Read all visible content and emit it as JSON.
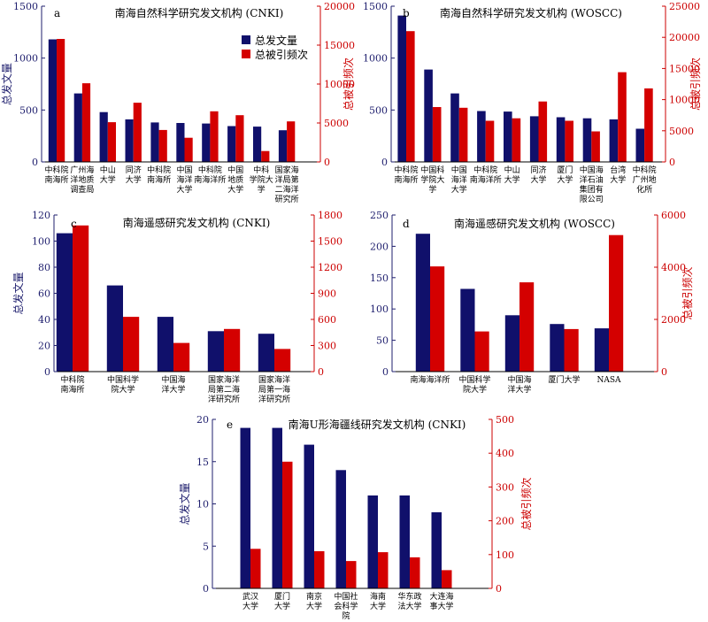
{
  "colors": {
    "pubs": "#10106b",
    "cites": "#d40000",
    "axis_left": "#1f1f6e",
    "axis_right": "#cc0000"
  },
  "legend": {
    "pubs": "总发文量",
    "cites": "总被引频次"
  },
  "chart_data": [
    {
      "type": "bar",
      "panel": "a",
      "title": "南海自然科学研究发文机构 (CNKI)",
      "ylabel": "总发文量",
      "ylabel_right": "总被引频次",
      "ylim": [
        0,
        1500
      ],
      "ylim_right": [
        0,
        20000
      ],
      "yticks": [
        0,
        500,
        1000,
        1500
      ],
      "yticks_right": [
        0,
        5000,
        10000,
        15000,
        20000
      ],
      "categories": [
        [
          "中科院",
          "南海所"
        ],
        [
          "广州海",
          "洋地质",
          "调查局"
        ],
        [
          "中山",
          "大学"
        ],
        [
          "同济",
          "大学"
        ],
        [
          "中科院",
          "南海所"
        ],
        [
          "中国",
          "海洋",
          "大学"
        ],
        [
          "中科院",
          "南海洋所"
        ],
        [
          "中国",
          "地质",
          "大学"
        ],
        [
          "中科",
          "学院大",
          "学"
        ],
        [
          "国家海",
          "洋局第",
          "二海洋",
          "研究所"
        ]
      ],
      "series": [
        {
          "name": "总发文量",
          "axis": "left",
          "values": [
            1180,
            660,
            480,
            410,
            380,
            375,
            370,
            345,
            340,
            305
          ]
        },
        {
          "name": "总被引频次",
          "axis": "right",
          "values": [
            15800,
            10100,
            5100,
            7600,
            4100,
            3100,
            6500,
            6000,
            1400,
            5200
          ]
        }
      ],
      "legend_position": "top-right"
    },
    {
      "type": "bar",
      "panel": "b",
      "title": "南海自然科学研究发文机构 (WOSCC)",
      "ylabel": "",
      "ylabel_right": "总被引频次",
      "ylim": [
        0,
        1500
      ],
      "ylim_right": [
        0,
        25000
      ],
      "yticks": [
        0,
        500,
        1000,
        1500
      ],
      "yticks_right": [
        0,
        5000,
        10000,
        15000,
        20000,
        25000
      ],
      "categories": [
        [
          "中科院",
          "南海所"
        ],
        [
          "中国科",
          "学院大",
          "学"
        ],
        [
          "中国",
          "海洋",
          "大学"
        ],
        [
          "中科院",
          "南海洋所"
        ],
        [
          "中山",
          "大学"
        ],
        [
          "同济",
          "大学"
        ],
        [
          "厦门",
          "大学"
        ],
        [
          "中国海",
          "洋石油",
          "集团有",
          "限公司"
        ],
        [
          "台湾",
          "大学"
        ],
        [
          "中科院",
          "广州地",
          "化所"
        ]
      ],
      "series": [
        {
          "name": "总发文量",
          "axis": "left",
          "values": [
            1410,
            890,
            660,
            490,
            485,
            440,
            430,
            420,
            410,
            320
          ]
        },
        {
          "name": "总被引频次",
          "axis": "right",
          "values": [
            21000,
            8800,
            8700,
            6600,
            7000,
            9700,
            6600,
            4900,
            14400,
            11800
          ]
        }
      ]
    },
    {
      "type": "bar",
      "panel": "c",
      "title": "南海遥感研究发文机构 (CNKI)",
      "ylabel": "总发文量",
      "ylabel_right": "",
      "ylim": [
        0,
        120
      ],
      "ylim_right": [
        0,
        1800
      ],
      "yticks": [
        0,
        20,
        40,
        60,
        80,
        100,
        120
      ],
      "yticks_right": [
        0,
        300,
        600,
        900,
        1200,
        1500,
        1800
      ],
      "categories": [
        [
          "中科院",
          "南海所"
        ],
        [
          "中国科学",
          "院大学"
        ],
        [
          "中国海",
          "洋大学"
        ],
        [
          "国家海洋",
          "局第二海",
          "洋研究所"
        ],
        [
          "国家海洋",
          "局第一海",
          "洋研究所"
        ]
      ],
      "series": [
        {
          "name": "总发文量",
          "axis": "left",
          "values": [
            106,
            66,
            42,
            31,
            29
          ]
        },
        {
          "name": "总被引频次",
          "axis": "right",
          "values": [
            1680,
            630,
            330,
            490,
            260
          ]
        }
      ]
    },
    {
      "type": "bar",
      "panel": "d",
      "title": "南海遥感研究发文机构 (WOSCC)",
      "ylabel": "",
      "ylabel_right": "总被引频次",
      "ylim": [
        0,
        250
      ],
      "ylim_right": [
        0,
        6000
      ],
      "yticks": [
        0,
        50,
        100,
        150,
        200,
        250
      ],
      "yticks_right": [
        0,
        2000,
        4000,
        6000
      ],
      "categories": [
        [
          "南海海洋所"
        ],
        [
          "中国科学",
          "院大学"
        ],
        [
          "中国海",
          "洋大学"
        ],
        [
          "厦门大学"
        ],
        [
          "NASA"
        ]
      ],
      "series": [
        {
          "name": "总发文量",
          "axis": "left",
          "values": [
            220,
            132,
            90,
            76,
            69
          ]
        },
        {
          "name": "总被引频次",
          "axis": "right",
          "values": [
            4030,
            1540,
            3420,
            1630,
            5230
          ]
        }
      ]
    },
    {
      "type": "bar",
      "panel": "e",
      "title": "南海U形海疆线研究发文机构 (CNKI)",
      "ylabel": "总发文量",
      "ylabel_right": "总被引频次",
      "ylim": [
        0,
        20
      ],
      "ylim_right": [
        0,
        500
      ],
      "yticks": [
        0,
        5,
        10,
        15,
        20
      ],
      "yticks_right": [
        0,
        100,
        200,
        300,
        400,
        500
      ],
      "categories": [
        [
          "武汉",
          "大学"
        ],
        [
          "厦门",
          "大学"
        ],
        [
          "南京",
          "大学"
        ],
        [
          "中国社",
          "会科学",
          "院"
        ],
        [
          "海南",
          "大学"
        ],
        [
          "华东政",
          "法大学"
        ],
        [
          "大连海",
          "事大学"
        ]
      ],
      "series": [
        {
          "name": "总发文量",
          "axis": "left",
          "values": [
            19,
            19,
            17,
            14,
            11,
            11,
            9
          ]
        },
        {
          "name": "总被引频次",
          "axis": "right",
          "values": [
            117,
            375,
            110,
            81,
            107,
            92,
            54
          ]
        }
      ]
    }
  ]
}
